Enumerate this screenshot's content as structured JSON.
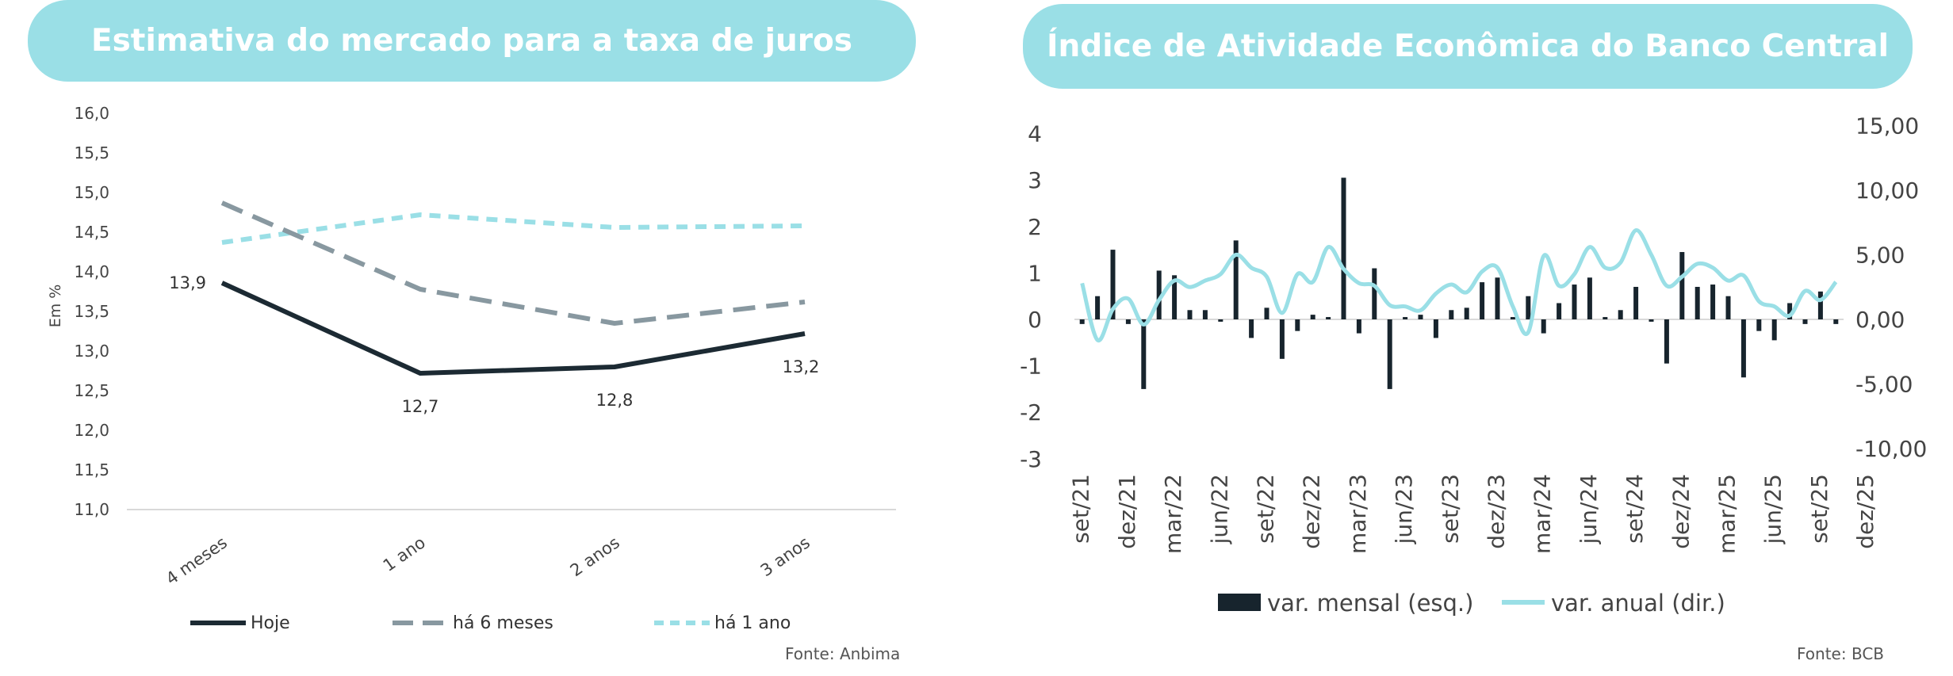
{
  "left": {
    "title": "Estimativa do mercado para a taxa de juros",
    "source": "Fonte: Anbima",
    "chart_data": {
      "type": "line",
      "title": "Estimativa do mercado para a taxa de juros",
      "ylabel": "Em %",
      "ylim": [
        11.0,
        16.0
      ],
      "yticks": [
        "16,0",
        "15,5",
        "15,0",
        "14,5",
        "14,0",
        "13,5",
        "13,0",
        "12,5",
        "12,0",
        "11,5",
        "11,0"
      ],
      "yticks_num": [
        16.0,
        15.5,
        15.0,
        14.5,
        14.0,
        13.5,
        13.0,
        12.5,
        12.0,
        11.5,
        11.0
      ],
      "categories": [
        "4 meses",
        "1 ano",
        "2 anos",
        "3 anos"
      ],
      "legend_position": "bottom",
      "series": [
        {
          "name": "Hoje",
          "values": [
            13.86,
            12.72,
            12.8,
            13.22
          ],
          "color": "#1c2a33",
          "dash": "solid",
          "labels": [
            "13,9",
            "12,7",
            "12,8",
            "13,2"
          ]
        },
        {
          "name": "há 6 meses",
          "values": [
            14.87,
            13.78,
            13.35,
            13.62
          ],
          "color": "#8898a0",
          "dash": "long"
        },
        {
          "name": "há 1 ano",
          "values": [
            14.37,
            14.72,
            14.56,
            14.58
          ],
          "color": "#9adfe6",
          "dash": "short"
        }
      ]
    }
  },
  "right": {
    "title": "Índice de Atividade Econômica do Banco Central",
    "source": "Fonte: BCB",
    "chart_data": {
      "type": "bar",
      "title": "Índice de Atividade Econômica do Banco Central",
      "ylim_left": [
        -3,
        4
      ],
      "ylim_right": [
        -10,
        15
      ],
      "yticks_left": [
        "4",
        "3",
        "2",
        "1",
        "0",
        "-1",
        "-2",
        "-3"
      ],
      "yticks_left_num": [
        4,
        3,
        2,
        1,
        0,
        -1,
        -2,
        -3
      ],
      "yticks_right": [
        "15,00",
        "10,00",
        "5,00",
        "0,00",
        "-5,00",
        "-10,00"
      ],
      "yticks_right_num": [
        15,
        10,
        5,
        0,
        -5,
        -10
      ],
      "xtick_labels": [
        "set/21",
        "dez/21",
        "mar/22",
        "jun/22",
        "set/22",
        "dez/22",
        "mar/23",
        "jun/23",
        "set/23",
        "dez/23",
        "mar/24",
        "jun/24",
        "set/24",
        "dez/24",
        "mar/25",
        "jun/25",
        "set/25",
        "dez/25"
      ],
      "legend_position": "bottom",
      "series": [
        {
          "name": "var. mensal (esq.)",
          "type": "bar",
          "axis": "left",
          "color": "#17242d",
          "values": [
            -0.1,
            0.5,
            1.5,
            -0.1,
            -1.5,
            1.05,
            0.95,
            0.2,
            0.2,
            -0.05,
            1.7,
            -0.4,
            0.25,
            -0.85,
            -0.25,
            0.1,
            0.05,
            3.05,
            -0.3,
            1.1,
            -1.5,
            0.05,
            0.1,
            -0.4,
            0.2,
            0.25,
            0.8,
            0.9,
            0.05,
            0.5,
            -0.3,
            0.35,
            0.75,
            0.9,
            0.05,
            0.2,
            0.7,
            -0.05,
            -0.95,
            1.45,
            0.7,
            0.75,
            0.5,
            -1.25,
            -0.25,
            -0.45,
            0.35,
            -0.1,
            0.6,
            -0.1
          ]
        },
        {
          "name": "var. anual (dir.)",
          "type": "line",
          "axis": "right",
          "color": "#9adfe6",
          "values": [
            2.8,
            -1.6,
            0.8,
            1.6,
            -0.4,
            1.5,
            3.0,
            2.5,
            3.0,
            3.5,
            5.0,
            4.0,
            3.3,
            0.5,
            3.5,
            2.9,
            5.6,
            3.9,
            2.8,
            2.6,
            1.1,
            1.0,
            0.7,
            2.0,
            2.7,
            2.1,
            3.7,
            4.0,
            1.0,
            -1.0,
            4.9,
            2.6,
            3.5,
            5.6,
            4.0,
            4.4,
            6.9,
            5.0,
            2.6,
            3.3,
            4.3,
            4.0,
            3.0,
            3.4,
            1.4,
            1.0,
            0.3,
            2.2,
            1.5,
            2.9
          ]
        }
      ]
    }
  }
}
